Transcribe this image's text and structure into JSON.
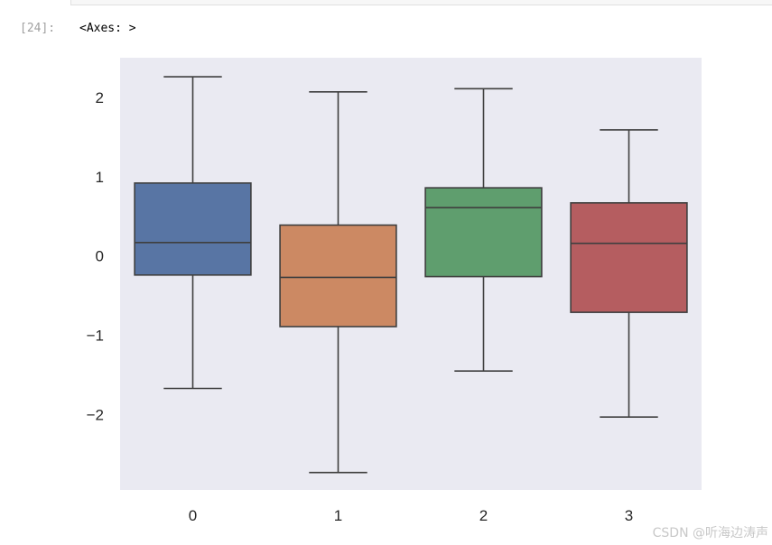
{
  "cell": {
    "prompt": "[24]:",
    "output_text": "<Axes: >"
  },
  "watermark": "CSDN @听海边涛声",
  "chart_data": {
    "type": "box",
    "categories": [
      "0",
      "1",
      "2",
      "3"
    ],
    "ylim": [
      -2.95,
      2.5
    ],
    "yticks": [
      2,
      1,
      0,
      -1,
      -2
    ],
    "ytick_labels": [
      "2",
      "1",
      "0",
      "−1",
      "−2"
    ],
    "grid": false,
    "background": "#eaeaf2",
    "boxes": [
      {
        "category": "0",
        "whisker_low": -1.67,
        "q1": -0.24,
        "median": 0.17,
        "q3": 0.92,
        "whisker_high": 2.26,
        "color": "#5875a4"
      },
      {
        "category": "1",
        "whisker_low": -2.73,
        "q1": -0.89,
        "median": -0.27,
        "q3": 0.39,
        "whisker_high": 2.07,
        "color": "#cc8963"
      },
      {
        "category": "2",
        "whisker_low": -1.45,
        "q1": -0.26,
        "median": 0.61,
        "q3": 0.86,
        "whisker_high": 2.11,
        "color": "#5f9e6e"
      },
      {
        "category": "3",
        "whisker_low": -2.03,
        "q1": -0.71,
        "median": 0.16,
        "q3": 0.67,
        "whisker_high": 1.59,
        "color": "#b55d60"
      }
    ],
    "line_color": "#3f3f3f"
  }
}
